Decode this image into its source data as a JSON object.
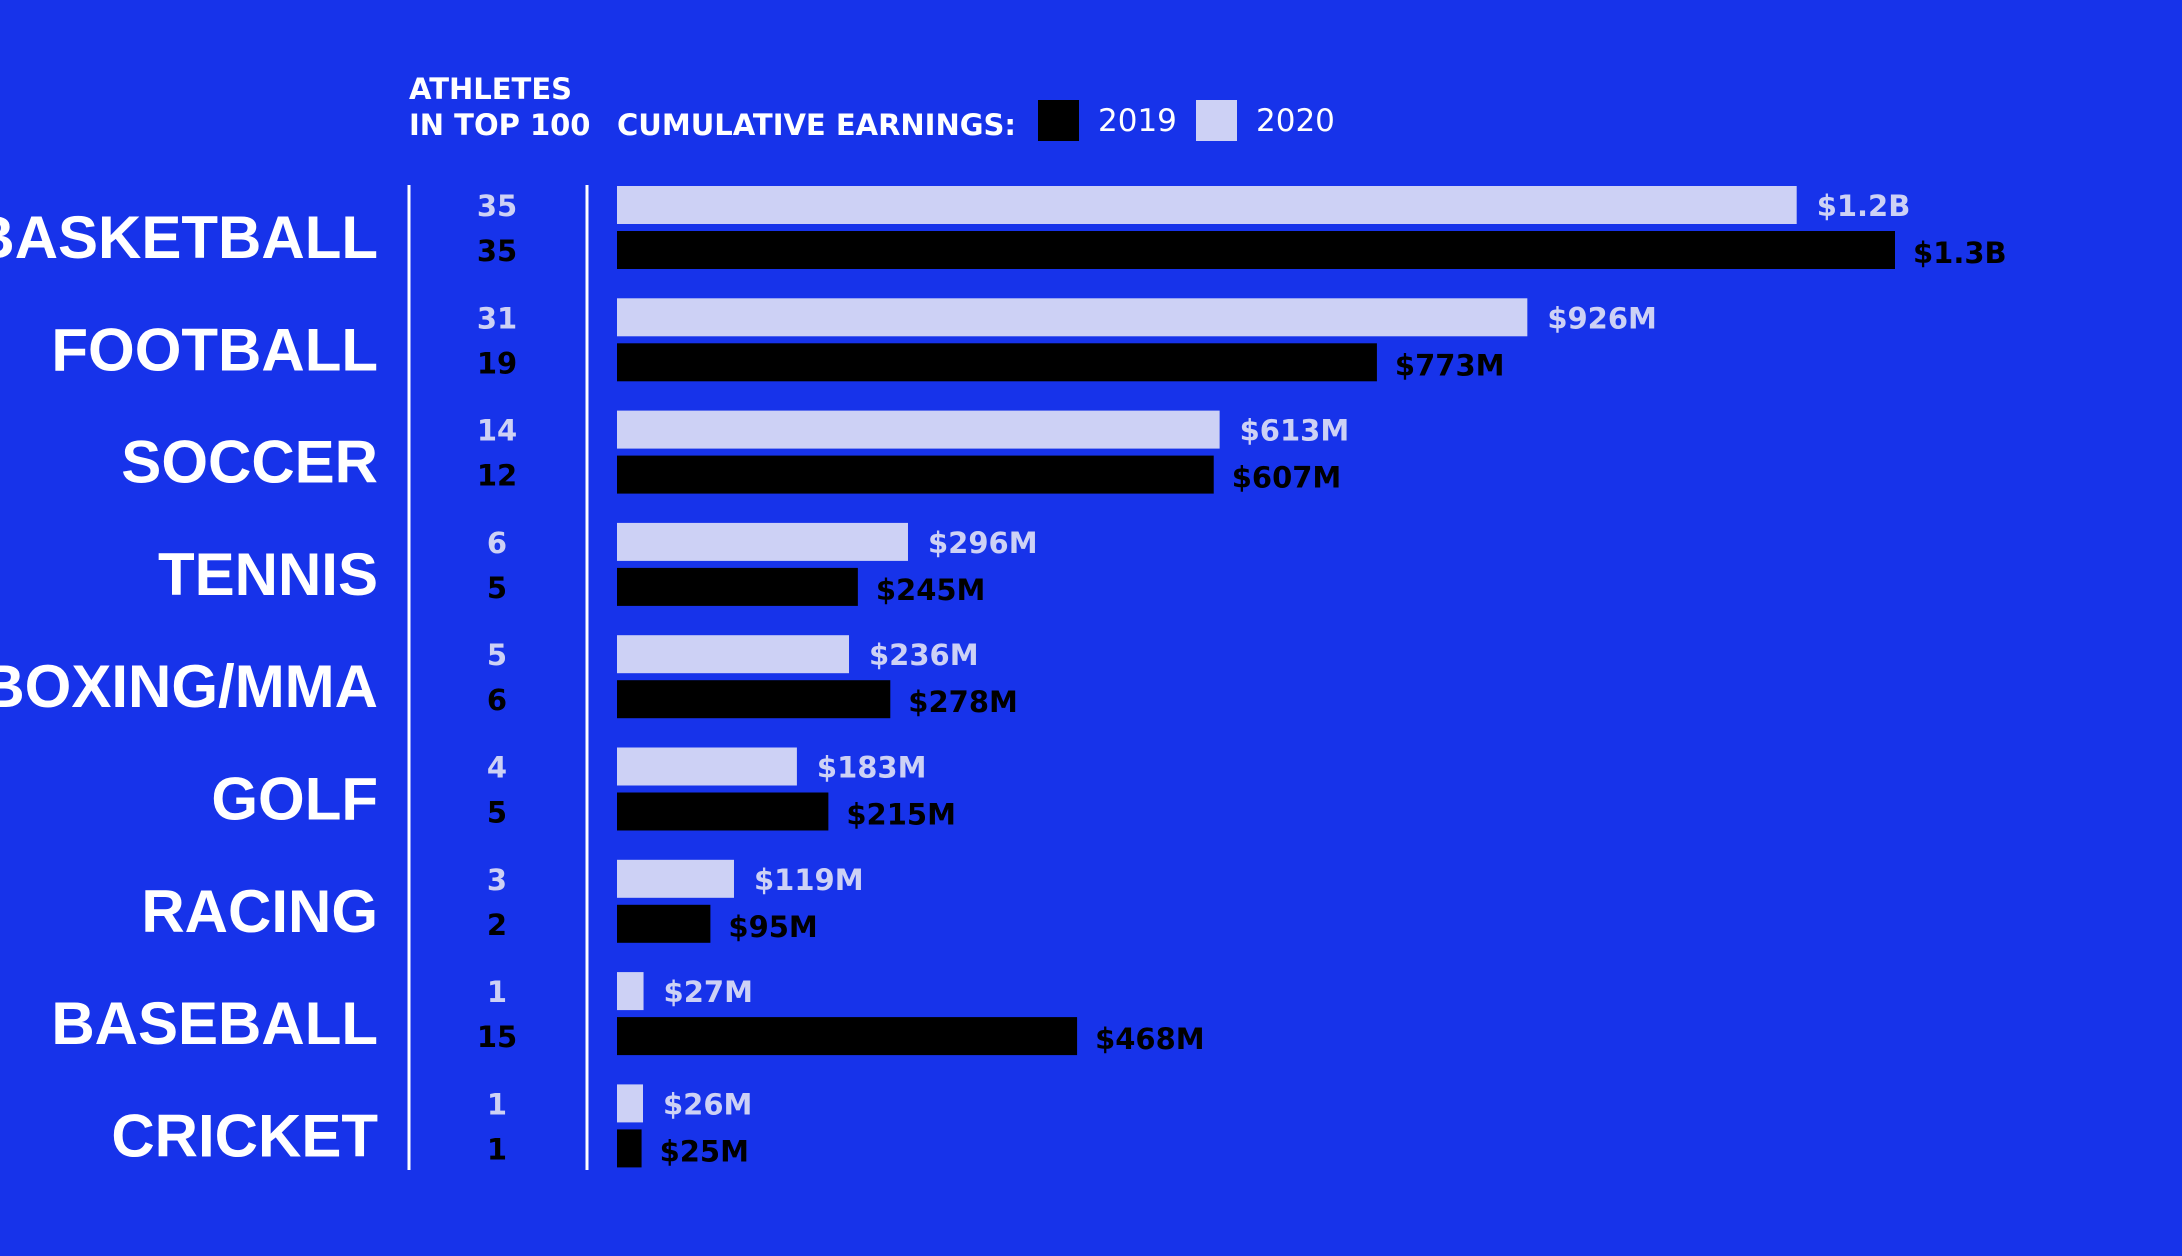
{
  "colors": {
    "background": "#1733ea",
    "bar_2019": "#000000",
    "bar_2020": "#cdd1f5",
    "divider": "#ffffff"
  },
  "header": {
    "athletes_line1": "ATHLETES",
    "athletes_line2": "IN TOP 100",
    "earnings_label": "CUMULATIVE EARNINGS:"
  },
  "legend": [
    {
      "label": "2019",
      "color": "#000000"
    },
    {
      "label": "2020",
      "color": "#cdd1f5"
    }
  ],
  "chart_data": {
    "type": "bar",
    "orientation": "horizontal",
    "title": "",
    "xlabel": "CUMULATIVE EARNINGS",
    "ylabel": "",
    "unit": "USD millions",
    "xlim": [
      0,
      1300
    ],
    "categories": [
      "BASKETBALL",
      "FOOTBALL",
      "SOCCER",
      "TENNIS",
      "BOXING/MMA",
      "GOLF",
      "RACING",
      "BASEBALL",
      "CRICKET"
    ],
    "series": [
      {
        "name": "2020",
        "values": [
          1200,
          926,
          613,
          296,
          236,
          183,
          119,
          27,
          26
        ],
        "labels": [
          "$1.2B",
          "$926M",
          "$613M",
          "$296M",
          "$236M",
          "$183M",
          "$119M",
          "$27M",
          "$26M"
        ],
        "athletes": [
          "35",
          "31",
          "14",
          "6",
          "5",
          "4",
          "3",
          "1",
          "1"
        ]
      },
      {
        "name": "2019",
        "values": [
          1300,
          773,
          607,
          245,
          278,
          215,
          95,
          468,
          25
        ],
        "labels": [
          "$1.3B",
          "$773M",
          "$607M",
          "$245M",
          "$278M",
          "$215M",
          "$95M",
          "$468M",
          "$25M"
        ],
        "athletes": [
          "35",
          "19",
          "12",
          "5",
          "6",
          "5",
          "2",
          "15",
          "1"
        ]
      }
    ]
  }
}
